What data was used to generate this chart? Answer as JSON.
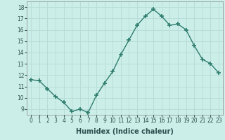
{
  "x": [
    0,
    1,
    2,
    3,
    4,
    5,
    6,
    7,
    8,
    9,
    10,
    11,
    12,
    13,
    14,
    15,
    16,
    17,
    18,
    19,
    20,
    21,
    22,
    23
  ],
  "y": [
    11.6,
    11.5,
    10.8,
    10.1,
    9.6,
    8.8,
    9.0,
    8.7,
    10.2,
    11.3,
    12.3,
    13.8,
    15.1,
    16.4,
    17.2,
    17.8,
    17.2,
    16.4,
    16.5,
    16.0,
    14.6,
    13.4,
    13.0,
    12.2
  ],
  "line_color": "#2e7d6e",
  "marker": "+",
  "marker_size": 4,
  "marker_lw": 1.2,
  "line_width": 1.0,
  "bg_color": "#cceee8",
  "grid_color": "#b8ddd8",
  "xlabel": "Humidex (Indice chaleur)",
  "ylim": [
    8.5,
    18.5
  ],
  "xlim": [
    -0.5,
    23.5
  ],
  "yticks": [
    9,
    10,
    11,
    12,
    13,
    14,
    15,
    16,
    17,
    18
  ],
  "xticks": [
    0,
    1,
    2,
    3,
    4,
    5,
    6,
    7,
    8,
    9,
    10,
    11,
    12,
    13,
    14,
    15,
    16,
    17,
    18,
    19,
    20,
    21,
    22,
    23
  ],
  "tick_fontsize": 5.5,
  "xlabel_fontsize": 7
}
